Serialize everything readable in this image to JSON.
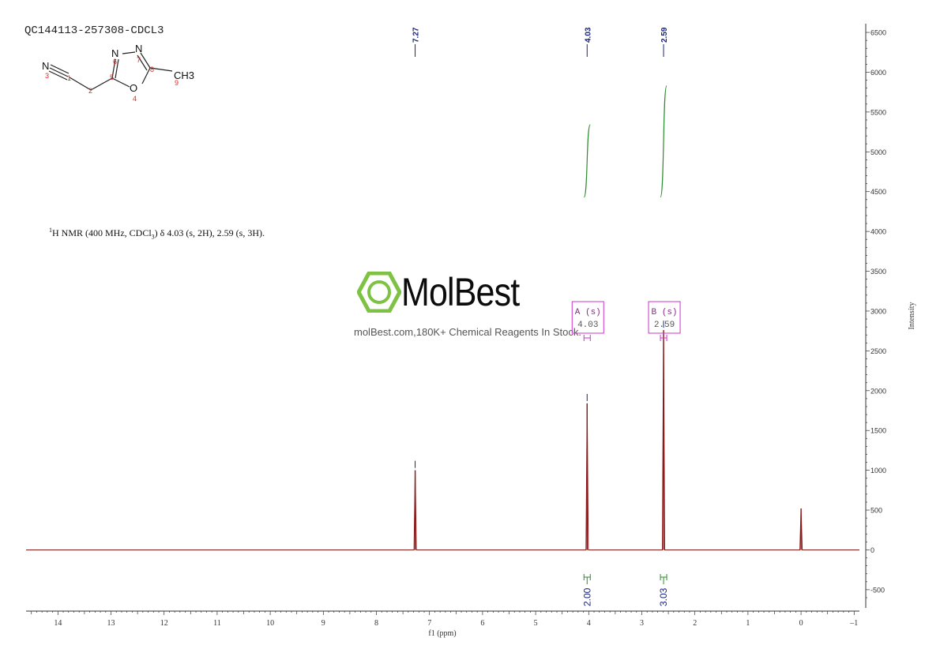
{
  "sample_id": "QC144113-257308-CDCL3",
  "nmr_summary": {
    "nucleus_sup": "1",
    "text_a": "H NMR (400 MHz, CDCl",
    "sub": "3",
    "text_b": ") δ 4.03 (s, 2H), 2.59 (s, 3H)."
  },
  "watermark": {
    "brand": "MolBest",
    "tagline": "molBest.com,180K+ Chemical Reagents In Stock."
  },
  "molecule": {
    "atoms": [
      "N",
      "N",
      "N",
      "O",
      "CH3"
    ],
    "atom_numbers": [
      "1",
      "2",
      "3",
      "4",
      "5",
      "6",
      "7",
      "8",
      "9"
    ]
  },
  "colors": {
    "spectrum": "#8b1a1a",
    "integral": "#2e8b2e",
    "peak_label": "#1a237e",
    "multiplet_box": "#cc33cc",
    "axis": "#333333",
    "atom_number": "#d32f2f"
  },
  "chart_data": {
    "type": "line",
    "title": "",
    "xlabel": "f1 (ppm)",
    "ylabel": "Intensity",
    "xlim": [
      14.6,
      -1.1
    ],
    "ylim": [
      -630,
      6550
    ],
    "x_ticks": [
      14,
      13,
      12,
      11,
      10,
      9,
      8,
      7,
      6,
      5,
      4,
      3,
      2,
      1,
      0,
      -1
    ],
    "x_tick_labels": [
      "14",
      "13",
      "12",
      "11",
      "10",
      "9",
      "8",
      "7",
      "6",
      "5",
      "4",
      "3",
      "2",
      "1",
      "0",
      "–1"
    ],
    "y_ticks": [
      6500,
      6000,
      5500,
      5000,
      4500,
      4000,
      3500,
      3000,
      2500,
      2000,
      1500,
      1000,
      500,
      0,
      -500
    ],
    "y_tick_labels": [
      "6500",
      "6000",
      "5500",
      "5000",
      "4500",
      "4000",
      "3500",
      "3000",
      "2500",
      "2000",
      "1500",
      "1000",
      "500",
      "0",
      "-500"
    ],
    "peaks": [
      {
        "ppm": 7.27,
        "height": 1000
      },
      {
        "ppm": 4.03,
        "height": 1840
      },
      {
        "ppm": 2.59,
        "height": 2760
      },
      {
        "ppm": 0.0,
        "height": 520
      }
    ],
    "peak_labels": [
      "7.27",
      "4.03",
      "2.59"
    ],
    "multiplets": [
      {
        "name": "A (s)",
        "shift": "4.03",
        "ppm": 4.03
      },
      {
        "name": "B (s)",
        "shift": "2.59",
        "ppm": 2.59
      }
    ],
    "integrals": [
      {
        "ppm": 4.03,
        "value": "2.00",
        "from": 4430,
        "to": 5340
      },
      {
        "ppm": 2.59,
        "value": "3.03",
        "from": 4430,
        "to": 5830
      }
    ]
  }
}
